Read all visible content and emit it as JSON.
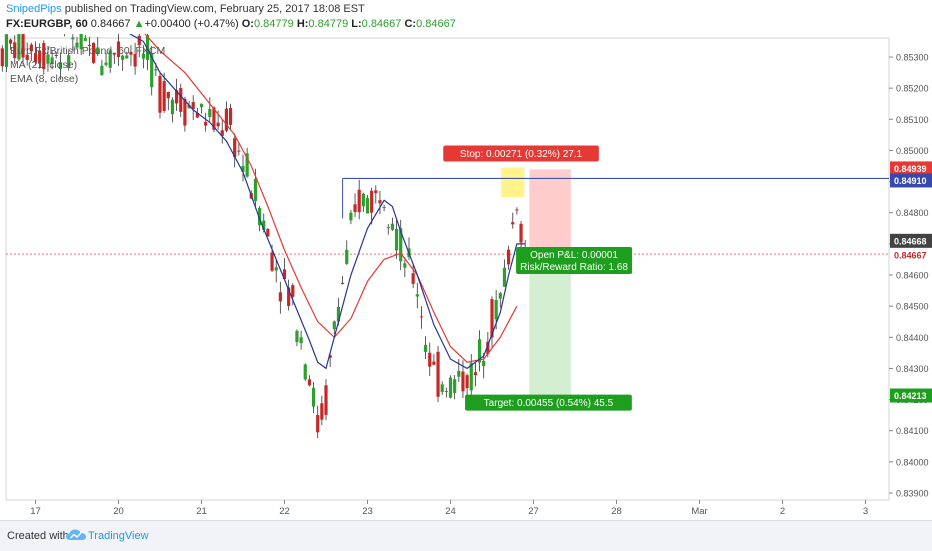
{
  "header": {
    "author": "SnipedPips",
    "published": "published on TradingView.com, February 25, 2017 18:08 EST",
    "symbol": "FX:EURGBP, 60",
    "last": "0.84667",
    "change_arrow": "▲",
    "change": "+0.00400 (+0.47%)",
    "o_label": "O:",
    "o_value": "0.84779",
    "h_label": "H:",
    "h_value": "0.84779",
    "l_label": "L:",
    "l_value": "0.84667",
    "c_label": "C:",
    "c_value": "0.84667"
  },
  "legend": {
    "title": "Euro Fx/British Pound, 60, FXCM",
    "ma": "MA (21, close)",
    "ema": "EMA (8, close)"
  },
  "footer": {
    "created_with": "Created with",
    "brand": "TradingView"
  },
  "colors": {
    "up": "#2ca02c",
    "down": "#c62828",
    "ma": "#e53935",
    "ema": "#283593",
    "hline": "#3f51b5",
    "stop_zone": "#ffc7c7",
    "target_zone": "#cfeccd",
    "stop_label": "#e53935",
    "target_label": "#1e9e1e",
    "entry_highlight": "#fff176"
  },
  "chart_data": {
    "type": "candlestick",
    "instrument": "FX:EURGBP",
    "timeframe": "60",
    "ylim": [
      0.8385,
      0.854
    ],
    "y_ticks": [
      "0.85300",
      "0.85200",
      "0.85100",
      "0.85000",
      "0.84900",
      "0.84800",
      "0.84700",
      "0.84600",
      "0.84500",
      "0.84400",
      "0.84300",
      "0.84200",
      "0.84100",
      "0.84000",
      "0.83900"
    ],
    "x_ticks": [
      {
        "label": "17",
        "bar": 4
      },
      {
        "label": "20",
        "bar": 14
      },
      {
        "label": "21",
        "bar": 24
      },
      {
        "label": "22",
        "bar": 34
      },
      {
        "label": "23",
        "bar": 44
      },
      {
        "label": "24",
        "bar": 54
      },
      {
        "label": "27",
        "bar": 64
      },
      {
        "label": "28",
        "bar": 74
      },
      {
        "label": "Mar",
        "bar": 84
      },
      {
        "label": "2",
        "bar": 94
      },
      {
        "label": "3",
        "bar": 104
      }
    ],
    "bars_visible": 107,
    "price_path": [
      [
        0,
        0.8532
      ],
      [
        3,
        0.8534
      ],
      [
        6,
        0.8531
      ],
      [
        9,
        0.8534
      ],
      [
        12,
        0.853
      ],
      [
        15,
        0.8533
      ],
      [
        17,
        0.8531
      ],
      [
        19,
        0.852
      ],
      [
        21,
        0.8517
      ],
      [
        24,
        0.8512
      ],
      [
        26,
        0.8507
      ],
      [
        27,
        0.851
      ],
      [
        29,
        0.8496
      ],
      [
        31,
        0.8482
      ],
      [
        33,
        0.8463
      ],
      [
        35,
        0.8452
      ],
      [
        36,
        0.844
      ],
      [
        37,
        0.8428
      ],
      [
        38,
        0.8412
      ],
      [
        39,
        0.842
      ],
      [
        40,
        0.8443
      ],
      [
        42,
        0.8472
      ],
      [
        43,
        0.8484
      ],
      [
        45,
        0.8485
      ],
      [
        46,
        0.8489
      ],
      [
        47,
        0.848
      ],
      [
        48,
        0.8468
      ],
      [
        50,
        0.8456
      ],
      [
        51,
        0.844
      ],
      [
        52,
        0.8428
      ],
      [
        54,
        0.8425
      ],
      [
        56,
        0.8428
      ],
      [
        57,
        0.8427
      ],
      [
        58,
        0.844
      ],
      [
        60,
        0.8452
      ],
      [
        61,
        0.8467
      ],
      [
        62,
        0.8485
      ],
      [
        63,
        0.8466
      ]
    ],
    "ma_21": [
      [
        15,
        0.8544
      ],
      [
        19,
        0.8532
      ],
      [
        22,
        0.8525
      ],
      [
        25,
        0.8515
      ],
      [
        28,
        0.8505
      ],
      [
        30,
        0.8495
      ],
      [
        32,
        0.8482
      ],
      [
        34,
        0.8468
      ],
      [
        36,
        0.8456
      ],
      [
        38,
        0.8445
      ],
      [
        40,
        0.844
      ],
      [
        42,
        0.8446
      ],
      [
        44,
        0.8458
      ],
      [
        46,
        0.8465
      ],
      [
        48,
        0.8467
      ],
      [
        50,
        0.846
      ],
      [
        52,
        0.8448
      ],
      [
        54,
        0.8437
      ],
      [
        56,
        0.8432
      ],
      [
        58,
        0.8433
      ],
      [
        60,
        0.844
      ],
      [
        62,
        0.845
      ]
    ],
    "ema_8": [
      [
        15,
        0.8538
      ],
      [
        17,
        0.8535
      ],
      [
        19,
        0.8525
      ],
      [
        21,
        0.8519
      ],
      [
        23,
        0.8513
      ],
      [
        25,
        0.8509
      ],
      [
        27,
        0.8503
      ],
      [
        29,
        0.8493
      ],
      [
        31,
        0.8478
      ],
      [
        33,
        0.8465
      ],
      [
        35,
        0.8452
      ],
      [
        37,
        0.8439
      ],
      [
        38,
        0.8432
      ],
      [
        39,
        0.843
      ],
      [
        40,
        0.844
      ],
      [
        42,
        0.846
      ],
      [
        44,
        0.8475
      ],
      [
        46,
        0.8484
      ],
      [
        47,
        0.8482
      ],
      [
        48,
        0.8474
      ],
      [
        50,
        0.846
      ],
      [
        52,
        0.8444
      ],
      [
        54,
        0.8433
      ],
      [
        56,
        0.843
      ],
      [
        58,
        0.8434
      ],
      [
        60,
        0.8448
      ],
      [
        61,
        0.846
      ],
      [
        62,
        0.847
      ],
      [
        63,
        0.847
      ]
    ],
    "horizontal_line": {
      "price": 0.8491,
      "from_bar": 41,
      "label": "0.84910"
    },
    "last_price_label": "0.84667",
    "last_price_alt_label": "0.84668",
    "stop_price_label": "0.84939",
    "target_price_label": "0.84213",
    "position": {
      "entry": 0.84667,
      "stop": 0.84939,
      "target": 0.84213,
      "from_bar": 63.5,
      "to_bar": 68.5,
      "stop_text": "Stop: 0.00271 (0.32%) 27.1",
      "target_text": "Target: 0.00455 (0.54%) 45.5",
      "pnl_text": "Open P&L: 0.00001",
      "rr_text": "Risk/Reward Ratio: 1.68"
    }
  }
}
